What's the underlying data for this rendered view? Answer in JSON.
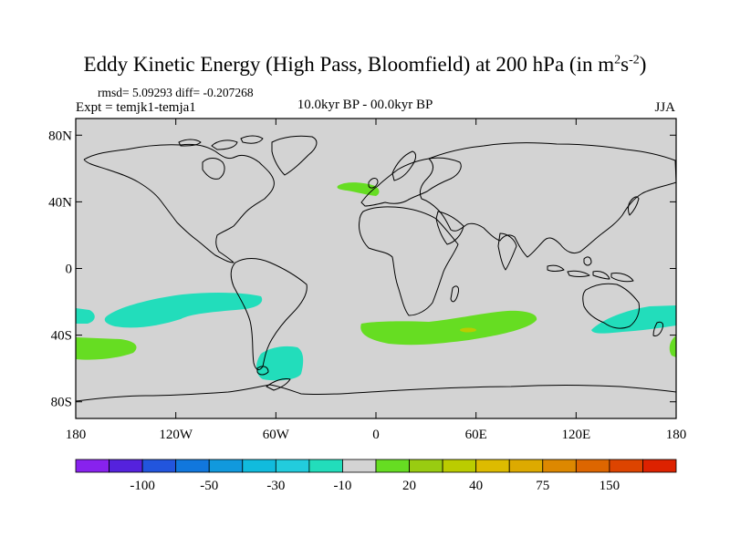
{
  "title": "Eddy Kinetic Energy (High Pass, Bloomfield) at 200 hPa (in m",
  "title_sup1": "2",
  "title_s": "s",
  "title_sup2": "-2",
  "title_end": ")",
  "stats": "rmsd= 5.09293 diff= -0.207268",
  "experiment": "Expt = temjk1-temja1",
  "period": "10.0kyr BP - 00.0kyr BP",
  "season": "JJA",
  "map": {
    "land_color": "#d3d3d3",
    "y_ticks": [
      "80N",
      "40N",
      "0",
      "40S",
      "80S"
    ],
    "x_ticks": [
      "180",
      "120W",
      "60W",
      "0",
      "60E",
      "120E",
      "180"
    ],
    "anomaly_regions": [
      {
        "name": "north-atlantic-positive",
        "color": "#66dd22",
        "category": "20"
      },
      {
        "name": "south-pacific-negative-band",
        "color": "#22ddbb",
        "category": "-10"
      },
      {
        "name": "southwest-pacific-negative-edge",
        "color": "#22ddbb",
        "category": "-10"
      },
      {
        "name": "south-pacific-positive",
        "color": "#66dd22",
        "category": "20"
      },
      {
        "name": "drake-passage-negative",
        "color": "#22ddbb",
        "category": "-10"
      },
      {
        "name": "south-indian-ocean-positive",
        "color": "#66dd22",
        "category": "20"
      },
      {
        "name": "south-indian-ocean-max",
        "color": "#bbcc00",
        "category": "40"
      },
      {
        "name": "tasman-negative",
        "color": "#22ddbb",
        "category": "-10"
      },
      {
        "name": "far-pacific-positive",
        "color": "#66dd22",
        "category": "20"
      }
    ]
  },
  "colorbar": {
    "colors": [
      "#8822ee",
      "#5522dd",
      "#2255dd",
      "#1177dd",
      "#1199dd",
      "#11bbdd",
      "#22ccdd",
      "#22ddbb",
      "#d3d3d3",
      "#66dd22",
      "#99cc11",
      "#bbcc00",
      "#ddbb00",
      "#ddaa00",
      "#dd8800",
      "#dd6600",
      "#dd4400",
      "#dd2200"
    ],
    "labels": [
      "-100",
      "-50",
      "-30",
      "-10",
      "20",
      "40",
      "75",
      "150"
    ]
  }
}
